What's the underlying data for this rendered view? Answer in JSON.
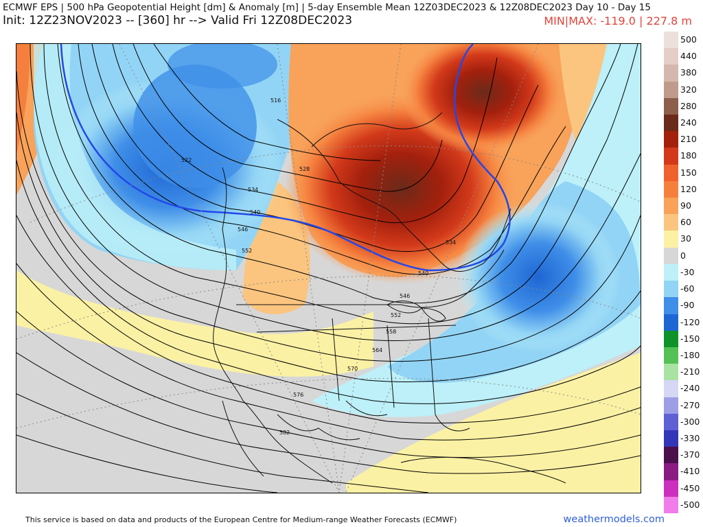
{
  "header": {
    "title": "ECMWF EPS | 500 hPa Geopotential Height [dm] & Anomaly [m] | 5-day Ensemble Mean 12Z03DEC2023 & 12Z08DEC2023   Day 10 - Day 15",
    "subtitle": "Init: 12Z23NOV2023 -- [360] hr --> Valid Fri 12Z08DEC2023",
    "minmax": "MIN|MAX: -119.0 | 227.8 m"
  },
  "map": {
    "contour_labels": [
      "516",
      "522",
      "528",
      "534",
      "540",
      "546",
      "552",
      "534",
      "540",
      "546",
      "552",
      "558",
      "564",
      "570",
      "576",
      "582"
    ]
  },
  "colorbar": {
    "entries": [
      {
        "label": "500",
        "color": "#ece0dc"
      },
      {
        "label": "440",
        "color": "#e3cfc7"
      },
      {
        "label": "380",
        "color": "#d4b8ad"
      },
      {
        "label": "320",
        "color": "#c09a8c"
      },
      {
        "label": "280",
        "color": "#8e5e4c"
      },
      {
        "label": "240",
        "color": "#6b2a1a"
      },
      {
        "label": "210",
        "color": "#a3200d"
      },
      {
        "label": "180",
        "color": "#d2391a"
      },
      {
        "label": "150",
        "color": "#f0622d"
      },
      {
        "label": "120",
        "color": "#f5803e"
      },
      {
        "label": "90",
        "color": "#f8a25a"
      },
      {
        "label": "60",
        "color": "#fbc57f"
      },
      {
        "label": "30",
        "color": "#fbf1a4"
      },
      {
        "label": "0",
        "color": "#d7d7d7"
      },
      {
        "label": "-30",
        "color": "#bdf0f8"
      },
      {
        "label": "-60",
        "color": "#92d4f5"
      },
      {
        "label": "-90",
        "color": "#3f8ee8"
      },
      {
        "label": "-120",
        "color": "#1e66d3"
      },
      {
        "label": "-150",
        "color": "#10922a"
      },
      {
        "label": "-180",
        "color": "#54c154"
      },
      {
        "label": "-210",
        "color": "#a8e3a3"
      },
      {
        "label": "-240",
        "color": "#d6d6f5"
      },
      {
        "label": "-270",
        "color": "#9d9ee6"
      },
      {
        "label": "-300",
        "color": "#5e60d4"
      },
      {
        "label": "-330",
        "color": "#3436b8"
      },
      {
        "label": "-370",
        "color": "#4b0f4b"
      },
      {
        "label": "-410",
        "color": "#8a1b83"
      },
      {
        "label": "-450",
        "color": "#cc2fbd"
      },
      {
        "label": "-500",
        "color": "#f07de9"
      }
    ]
  },
  "footer": {
    "credit": "This service is based on data and products of the European Centre for Medium-range Weather Forecasts (ECMWF)",
    "site": "weathermodels.com"
  }
}
